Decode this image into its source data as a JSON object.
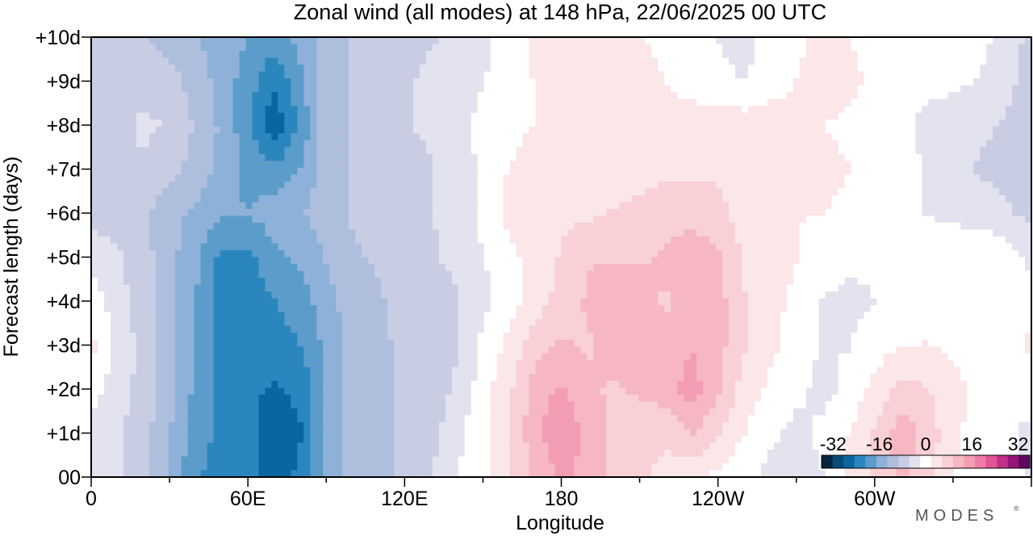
{
  "chart_data": {
    "type": "heatmap",
    "title": "Zonal wind (all modes) at 148 hPa,  22/06/2025  00 UTC",
    "xlabel": "Longitude",
    "ylabel": "Forecast length (days)",
    "x_ticks": [
      "0",
      "60E",
      "120E",
      "180",
      "120W",
      "60W"
    ],
    "x_tick_values": [
      0,
      60,
      120,
      180,
      240,
      300
    ],
    "xlim": [
      0,
      360
    ],
    "y_ticks": [
      "00",
      "+1d",
      "+2d",
      "+3d",
      "+4d",
      "+5d",
      "+6d",
      "+7d",
      "+8d",
      "+9d",
      "+10d"
    ],
    "ylim": [
      0,
      10
    ],
    "colorbar": {
      "labels": [
        "-32",
        "-16",
        "0",
        "16",
        "32"
      ],
      "label_values": [
        -32,
        -16,
        0,
        16,
        32
      ],
      "range": [
        -36,
        36
      ],
      "colors": [
        "#06243e",
        "#0a4a78",
        "#0b65a0",
        "#2c86be",
        "#5b9ccb",
        "#8db1d8",
        "#aebfdd",
        "#c8cde4",
        "#e2e3ef",
        "#ffffff",
        "#fbe6e8",
        "#f8d0d5",
        "#f6b7c3",
        "#f39db5",
        "#ef7ca6",
        "#e05596",
        "#c12f86",
        "#941477",
        "#5e0a5e"
      ]
    },
    "wind_field": {
      "lon": [
        0,
        10,
        20,
        30,
        40,
        50,
        60,
        70,
        80,
        90,
        100,
        110,
        120,
        130,
        140,
        150,
        160,
        170,
        180,
        190,
        200,
        210,
        220,
        230,
        240,
        250,
        260,
        270,
        280,
        290,
        300,
        310,
        320,
        330,
        340,
        350,
        360
      ],
      "days": [
        0,
        1,
        2,
        3,
        4,
        5,
        6,
        7,
        8,
        9,
        10
      ],
      "values_ms": [
        [
          -2,
          -5,
          -9,
          -14,
          -20,
          -23,
          -24,
          -26,
          -24,
          -16,
          -12,
          -10,
          -9,
          -6,
          -2,
          1,
          5,
          10,
          14,
          12,
          8,
          6,
          5,
          3,
          1,
          -1,
          -3,
          -5,
          -2,
          3,
          6,
          10,
          7,
          2,
          0,
          -1,
          -2
        ],
        [
          -3,
          -5,
          -8,
          -13,
          -19,
          -22,
          -24,
          -26,
          -25,
          -16,
          -12,
          -10,
          -9,
          -7,
          -3,
          1,
          6,
          12,
          17,
          12,
          9,
          7,
          6,
          10,
          6,
          2,
          -1,
          -3,
          -1,
          2,
          6,
          12,
          8,
          3,
          0,
          -1,
          -3
        ],
        [
          0,
          -4,
          -7,
          -12,
          -18,
          -22,
          -24,
          -25,
          -24,
          -16,
          -12,
          -10,
          -9,
          -8,
          -5,
          0,
          5,
          11,
          14,
          10,
          9,
          10,
          12,
          15,
          10,
          4,
          1,
          -1,
          -3,
          -1,
          3,
          7,
          6,
          3,
          1,
          -1,
          0
        ],
        [
          3,
          -3,
          -7,
          -12,
          -17,
          -22,
          -23,
          -22,
          -21,
          -16,
          -12,
          -10,
          -9,
          -8,
          -6,
          -1,
          3,
          8,
          10,
          9,
          11,
          12,
          10,
          13,
          11,
          6,
          3,
          0,
          -2,
          -2,
          0,
          2,
          2,
          1,
          1,
          -1,
          3
        ],
        [
          0,
          -4,
          -8,
          -12,
          -17,
          -22,
          -23,
          -21,
          -19,
          -15,
          -11,
          -10,
          -8,
          -7,
          -6,
          -3,
          0,
          4,
          7,
          10,
          13,
          11,
          9,
          12,
          11,
          6,
          3,
          1,
          -2,
          -3,
          -2,
          -1,
          0,
          1,
          1,
          0,
          0
        ],
        [
          -3,
          -5,
          -8,
          -12,
          -16,
          -22,
          -22,
          -18,
          -16,
          -13,
          -10,
          -9,
          -7,
          -6,
          -5,
          -2,
          1,
          3,
          6,
          9,
          9,
          9,
          10,
          12,
          10,
          5,
          4,
          2,
          0,
          -1,
          -1,
          0,
          0,
          1,
          2,
          0,
          -3
        ],
        [
          -7,
          -8,
          -9,
          -12,
          -14,
          -17,
          -17,
          -15,
          -14,
          -11,
          -9,
          -8,
          -7,
          -6,
          -4,
          -1,
          3,
          4,
          5,
          5,
          6,
          7,
          8,
          8,
          7,
          4,
          3,
          2,
          2,
          1,
          0,
          -1,
          -2,
          -3,
          -4,
          -5,
          -7
        ],
        [
          -8,
          -7,
          -6,
          -8,
          -11,
          -14,
          -18,
          -20,
          -17,
          -11,
          -9,
          -8,
          -7,
          -6,
          -4,
          -1,
          2,
          3,
          3,
          3,
          3,
          4,
          5,
          5,
          5,
          4,
          3,
          3,
          3,
          2,
          0,
          -1,
          -2,
          -4,
          -6,
          -7,
          -8
        ],
        [
          -9,
          -7,
          -5,
          -6,
          -10,
          -14,
          -20,
          -28,
          -20,
          -11,
          -9,
          -7,
          -6,
          -5,
          -3,
          -1,
          1,
          2,
          3,
          3,
          2,
          2,
          3,
          4,
          4,
          4,
          4,
          3,
          2,
          1,
          0,
          -1,
          -3,
          -4,
          -5,
          -6,
          -9
        ],
        [
          -8,
          -8,
          -7,
          -8,
          -11,
          -15,
          -19,
          -24,
          -18,
          -11,
          -9,
          -7,
          -6,
          -5,
          -4,
          -2,
          0,
          2,
          4,
          4,
          3,
          3,
          2,
          0,
          -1,
          -2,
          0,
          2,
          4,
          3,
          1,
          0,
          -1,
          -1,
          -2,
          -4,
          -8
        ],
        [
          -7,
          -8,
          -9,
          -11,
          -13,
          -15,
          -17,
          -19,
          -16,
          -11,
          -9,
          -8,
          -7,
          -6,
          -5,
          -3,
          0,
          3,
          4,
          4,
          3,
          2,
          1,
          -1,
          -2,
          -3,
          -1,
          1,
          3,
          2,
          0,
          -1,
          -1,
          -1,
          -1,
          -3,
          -7
        ]
      ]
    }
  },
  "branding": {
    "logo_text": "MODES",
    "registered": "®"
  }
}
